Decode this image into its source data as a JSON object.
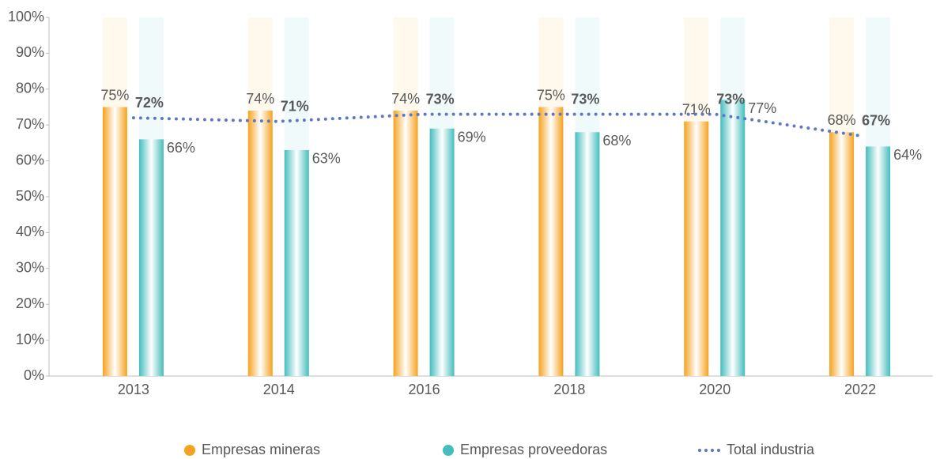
{
  "chart_data": {
    "type": "bar",
    "categories": [
      "2013",
      "2014",
      "2016",
      "2018",
      "2020",
      "2022"
    ],
    "series": [
      {
        "name": "Empresas mineras",
        "color": "#f5a31e",
        "values": [
          75,
          74,
          74,
          75,
          71,
          68
        ],
        "value_labels": [
          "75%",
          "74%",
          "74%",
          "75%",
          "71%",
          "68%"
        ]
      },
      {
        "name": "Empresas proveedoras",
        "color": "#45bdbd",
        "values": [
          66,
          63,
          69,
          68,
          77,
          64
        ],
        "value_labels": [
          "66%",
          "63%",
          "69%",
          "68%",
          "77%",
          "64%"
        ]
      },
      {
        "name": "Total industria",
        "type": "line",
        "color": "#5b78c0",
        "values": [
          72,
          71,
          73,
          73,
          73,
          67
        ],
        "value_labels": [
          "72%",
          "71%",
          "73%",
          "73%",
          "73%",
          "67%"
        ]
      }
    ],
    "ylim": [
      0,
      100
    ],
    "yticks": [
      {
        "value": 0,
        "label": "0%"
      },
      {
        "value": 10,
        "label": "10%"
      },
      {
        "value": 20,
        "label": "20%"
      },
      {
        "value": 30,
        "label": "30%"
      },
      {
        "value": 40,
        "label": "40%"
      },
      {
        "value": 50,
        "label": "50%"
      },
      {
        "value": 60,
        "label": "60%"
      },
      {
        "value": 70,
        "label": "70%"
      },
      {
        "value": 80,
        "label": "80%"
      },
      {
        "value": 90,
        "label": "90%"
      },
      {
        "value": 100,
        "label": "100%"
      }
    ],
    "legend": "bottom"
  }
}
